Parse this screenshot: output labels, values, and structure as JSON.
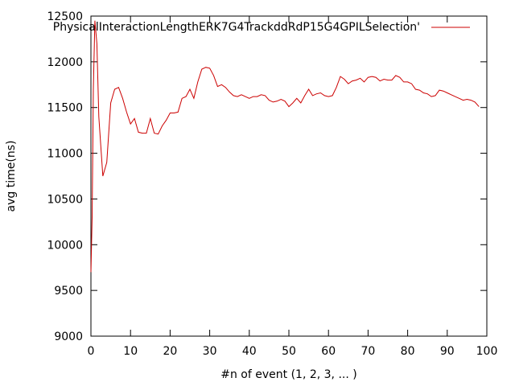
{
  "chart_data": {
    "type": "line",
    "xlabel": "#n of event (1, 2, 3, ... )",
    "ylabel": "avg time(ns)",
    "xlim": [
      0,
      100
    ],
    "ylim": [
      9000,
      12500
    ],
    "xticks": [
      0,
      10,
      20,
      30,
      40,
      50,
      60,
      70,
      80,
      90,
      100
    ],
    "yticks": [
      9000,
      9500,
      10000,
      10500,
      11000,
      11500,
      12000,
      12500
    ],
    "grid": false,
    "legend": "top-right",
    "series": [
      {
        "name": "PhysicalInteractionLengthERK7G4TrackddRdP15G4GPILSelection'",
        "color": "#cc0000",
        "x": [
          0,
          0.3,
          0.6,
          1,
          1.5,
          2,
          3,
          4,
          5,
          6,
          7,
          8,
          9,
          10,
          11,
          12,
          13,
          14,
          15,
          16,
          17,
          18,
          19,
          20,
          21,
          22,
          23,
          24,
          25,
          26,
          27,
          28,
          29,
          30,
          31,
          32,
          33,
          34,
          35,
          36,
          37,
          38,
          39,
          40,
          41,
          42,
          43,
          44,
          45,
          46,
          47,
          48,
          49,
          50,
          51,
          52,
          53,
          54,
          55,
          56,
          57,
          58,
          59,
          60,
          61,
          62,
          63,
          64,
          65,
          66,
          67,
          68,
          69,
          70,
          71,
          72,
          73,
          74,
          75,
          76,
          77,
          78,
          79,
          80,
          81,
          82,
          83,
          84,
          85,
          86,
          87,
          88,
          89,
          90,
          91,
          92,
          93,
          94,
          95,
          96,
          97,
          98
        ],
        "values": [
          9700,
          10300,
          11700,
          12450,
          12200,
          11400,
          10750,
          10900,
          11550,
          11700,
          11720,
          11600,
          11450,
          11320,
          11380,
          11230,
          11220,
          11220,
          11380,
          11220,
          11210,
          11300,
          11360,
          11440,
          11440,
          11450,
          11600,
          11620,
          11700,
          11600,
          11780,
          11920,
          11940,
          11930,
          11850,
          11730,
          11750,
          11720,
          11670,
          11630,
          11620,
          11640,
          11620,
          11600,
          11620,
          11620,
          11640,
          11630,
          11580,
          11560,
          11570,
          11590,
          11570,
          11510,
          11550,
          11600,
          11550,
          11630,
          11700,
          11630,
          11650,
          11660,
          11630,
          11620,
          11630,
          11720,
          11840,
          11810,
          11760,
          11790,
          11800,
          11820,
          11780,
          11830,
          11840,
          11830,
          11790,
          11810,
          11800,
          11800,
          11850,
          11830,
          11780,
          11780,
          11760,
          11700,
          11690,
          11660,
          11650,
          11620,
          11630,
          11690,
          11680,
          11660,
          11640,
          11620,
          11600,
          11580,
          11590,
          11580,
          11560,
          11510
        ]
      }
    ]
  }
}
